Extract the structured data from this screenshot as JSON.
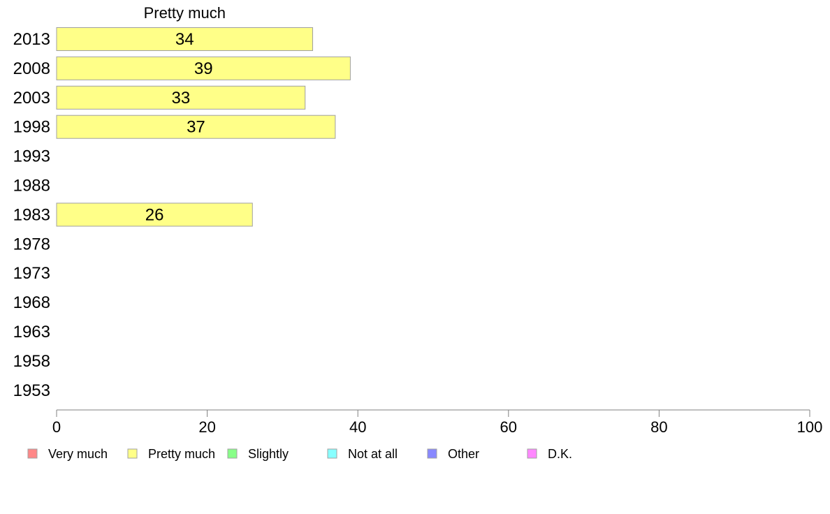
{
  "chart_data": {
    "type": "bar",
    "orientation": "horizontal",
    "series_title": "Pretty much",
    "categories": [
      "2013",
      "2008",
      "2003",
      "1998",
      "1993",
      "1988",
      "1983",
      "1978",
      "1973",
      "1968",
      "1963",
      "1958",
      "1953"
    ],
    "series": [
      {
        "name": "Pretty much",
        "color": "#ffff88",
        "values": [
          34,
          39,
          33,
          37,
          null,
          null,
          26,
          null,
          null,
          null,
          null,
          null,
          null
        ]
      }
    ],
    "xlim": [
      0,
      100
    ],
    "xticks": [
      0,
      20,
      40,
      60,
      80,
      100
    ],
    "grid": false,
    "legend_position": "bottom",
    "legend": [
      {
        "label": "Very much",
        "color": "#ff8888"
      },
      {
        "label": "Pretty much",
        "color": "#ffff88"
      },
      {
        "label": "Slightly",
        "color": "#88ff88"
      },
      {
        "label": "Not at all",
        "color": "#88ffff"
      },
      {
        "label": "Other",
        "color": "#8888ff"
      },
      {
        "label": "D.K.",
        "color": "#ff88ff"
      }
    ]
  }
}
